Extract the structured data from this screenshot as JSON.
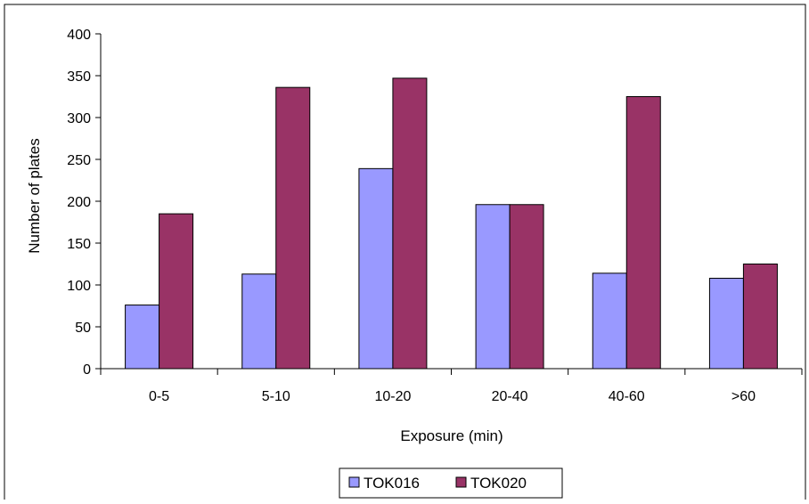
{
  "chart_data": {
    "type": "bar",
    "categories": [
      "0-5",
      "5-10",
      "10-20",
      "20-40",
      "40-60",
      ">60"
    ],
    "series": [
      {
        "name": "TOK016",
        "values": [
          76,
          113,
          239,
          196,
          114,
          108
        ],
        "color": "#9999ff"
      },
      {
        "name": "TOK020",
        "values": [
          185,
          336,
          347,
          196,
          325,
          125
        ],
        "color": "#993366"
      }
    ],
    "title": "",
    "xlabel": "Exposure (min)",
    "ylabel": "Number of plates",
    "ylim": [
      0,
      400
    ],
    "yticks": [
      0,
      50,
      100,
      150,
      200,
      250,
      300,
      350,
      400
    ],
    "grid": false,
    "legend_position": "bottom"
  }
}
